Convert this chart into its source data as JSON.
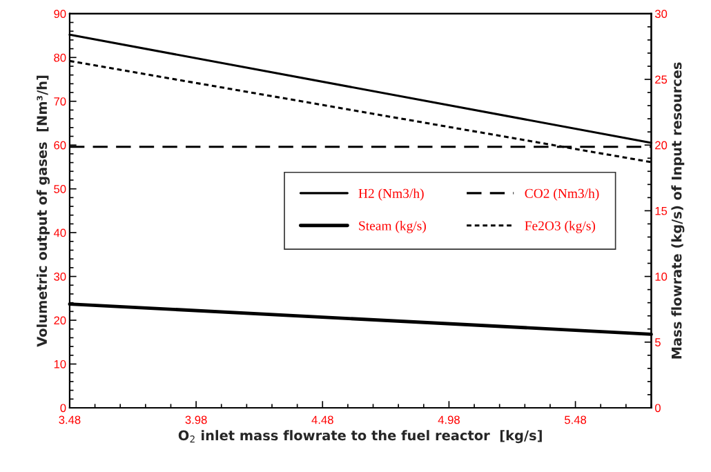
{
  "chart_data": {
    "type": "line",
    "xlabel": "O$_{2}$ inlet mass flowrate to the fuel reactor  [kg/s]",
    "ylabel": "Volumetric output of gases  [Nm³/h]",
    "y2label": "Mass flowrate (kg/s) of Input resources",
    "x": [
      3.48,
      5.78
    ],
    "xlim": [
      3.48,
      5.78
    ],
    "xticks": [
      3.48,
      3.98,
      4.48,
      4.98,
      5.48
    ],
    "ylim": [
      0,
      90
    ],
    "yticks": [
      0,
      10,
      20,
      30,
      40,
      50,
      60,
      70,
      80,
      90
    ],
    "y2lim": [
      0,
      30
    ],
    "y2ticks": [
      0,
      5,
      10,
      15,
      20,
      25,
      30
    ],
    "series": [
      {
        "name": "H2 (Nm3/h)",
        "color": "#000000",
        "values": [
          85.2,
          60.5
        ],
        "line_style": "solid"
      },
      {
        "name": "CO2 (Nm3/h)",
        "color": "#000000",
        "values": [
          59.6,
          59.6
        ],
        "line_style": "dashed"
      },
      {
        "name": "Steam (kg/s)",
        "color": "#000000",
        "values": [
          7.9,
          5.6
        ],
        "line_style": "solid",
        "axis": "y2"
      },
      {
        "name": "Fe2O3 (kg/s)",
        "color": "#000000",
        "values": [
          26.4,
          18.7
        ],
        "line_style": "dotted",
        "axis": "y2"
      }
    ],
    "legend": "right",
    "grid": false,
    "marker": "none"
  }
}
